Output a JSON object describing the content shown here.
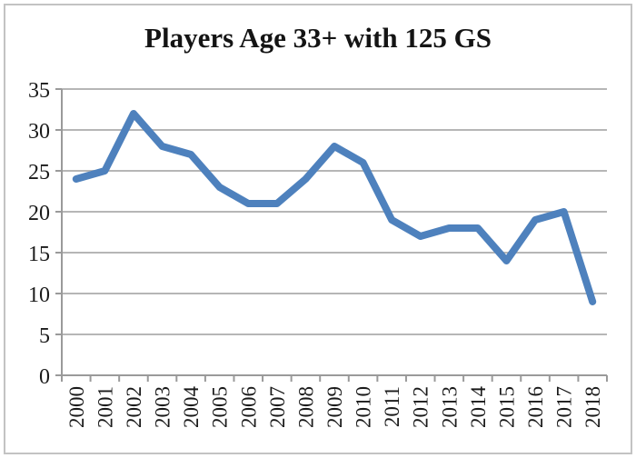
{
  "chart_data": {
    "type": "line",
    "title": "Players Age 33+ with 125 GS",
    "categories": [
      "2000",
      "2001",
      "2002",
      "2003",
      "2004",
      "2005",
      "2006",
      "2007",
      "2008",
      "2009",
      "2010",
      "2011",
      "2012",
      "2013",
      "2014",
      "2015",
      "2016",
      "2017",
      "2018"
    ],
    "values": [
      24,
      25,
      32,
      28,
      27,
      23,
      21,
      21,
      24,
      28,
      26,
      19,
      17,
      18,
      18,
      14,
      19,
      20,
      9
    ],
    "xlabel": "",
    "ylabel": "",
    "ylim": [
      0,
      35
    ],
    "y_ticks": [
      0,
      5,
      10,
      15,
      20,
      25,
      30,
      35
    ],
    "grid": true,
    "legend": false,
    "line_color": "#4E81BD",
    "gridline_color": "#b6b6b6",
    "axis_color": "#9a9a9a",
    "text_color": "#1a1a1a"
  }
}
